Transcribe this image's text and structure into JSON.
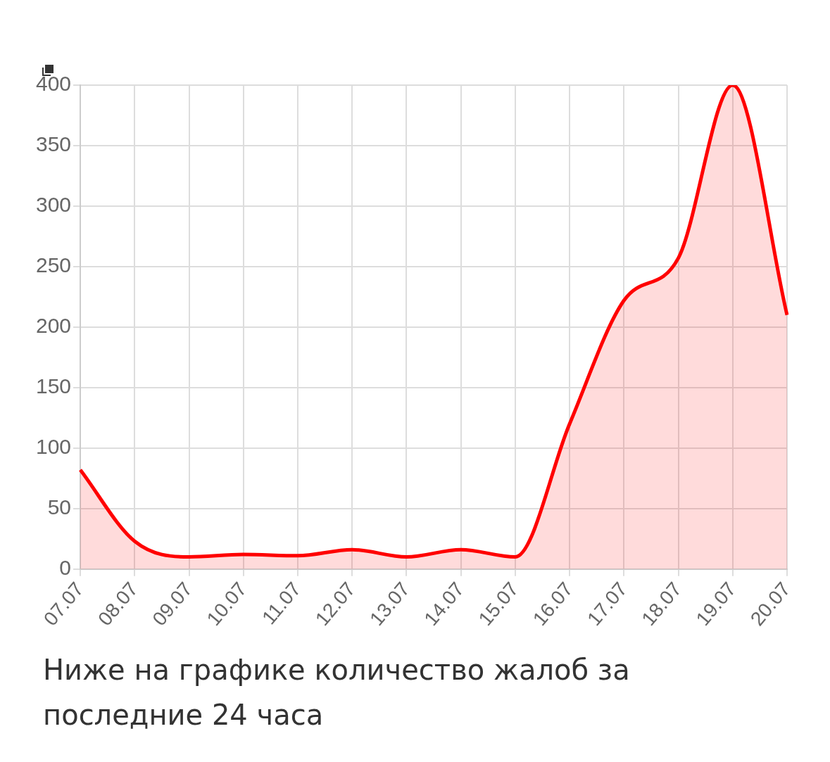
{
  "chart_data": {
    "type": "area",
    "categories": [
      "07.07",
      "08.07",
      "09.07",
      "10.07",
      "11.07",
      "12.07",
      "13.07",
      "14.07",
      "15.07",
      "16.07",
      "17.07",
      "18.07",
      "19.07",
      "20.07"
    ],
    "series": [
      {
        "color": "#ff0000",
        "values": [
          82,
          23,
          10,
          12,
          11,
          16,
          10,
          16,
          10,
          120,
          222,
          257,
          400,
          210
        ]
      }
    ],
    "ylim": [
      0,
      400
    ],
    "yticks": [
      0,
      50,
      100,
      150,
      200,
      250,
      300,
      350,
      400
    ],
    "grid": true,
    "legend": false,
    "marker": "none",
    "line_style": "solid",
    "annotations": [
      "Ниже на графике количество жалоб за последние 24 часа"
    ]
  }
}
